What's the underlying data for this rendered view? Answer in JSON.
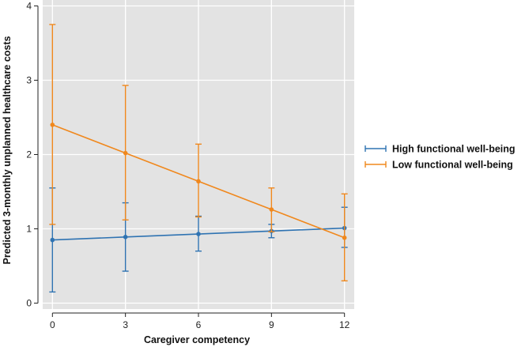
{
  "chart_data": {
    "type": "line",
    "xlabel": "Caregiver competency",
    "ylabel": "Predicted 3-monthly unplanned healthcare costs",
    "x": [
      0,
      3,
      6,
      9,
      12
    ],
    "xticks": [
      "0",
      "3",
      "6",
      "9",
      "12"
    ],
    "yticks": [
      "0",
      "1",
      "2",
      "3",
      "4"
    ],
    "xlim": [
      -0.4,
      12.4
    ],
    "ylim": [
      -0.08,
      4.08
    ],
    "grid": true,
    "legend_position": "right",
    "series": [
      {
        "name": "High functional well-being",
        "color": "#2f73b2",
        "values": [
          0.85,
          0.89,
          0.93,
          0.97,
          1.01
        ],
        "lower": [
          0.15,
          0.43,
          0.7,
          0.88,
          0.75
        ],
        "upper": [
          1.55,
          1.35,
          1.17,
          1.06,
          1.29
        ]
      },
      {
        "name": "Low functional well-being",
        "color": "#f0881d",
        "values": [
          2.4,
          2.02,
          1.64,
          1.26,
          0.88
        ],
        "lower": [
          1.06,
          1.12,
          1.16,
          0.96,
          0.3
        ],
        "upper": [
          3.75,
          2.93,
          2.14,
          1.55,
          1.47
        ]
      }
    ]
  }
}
